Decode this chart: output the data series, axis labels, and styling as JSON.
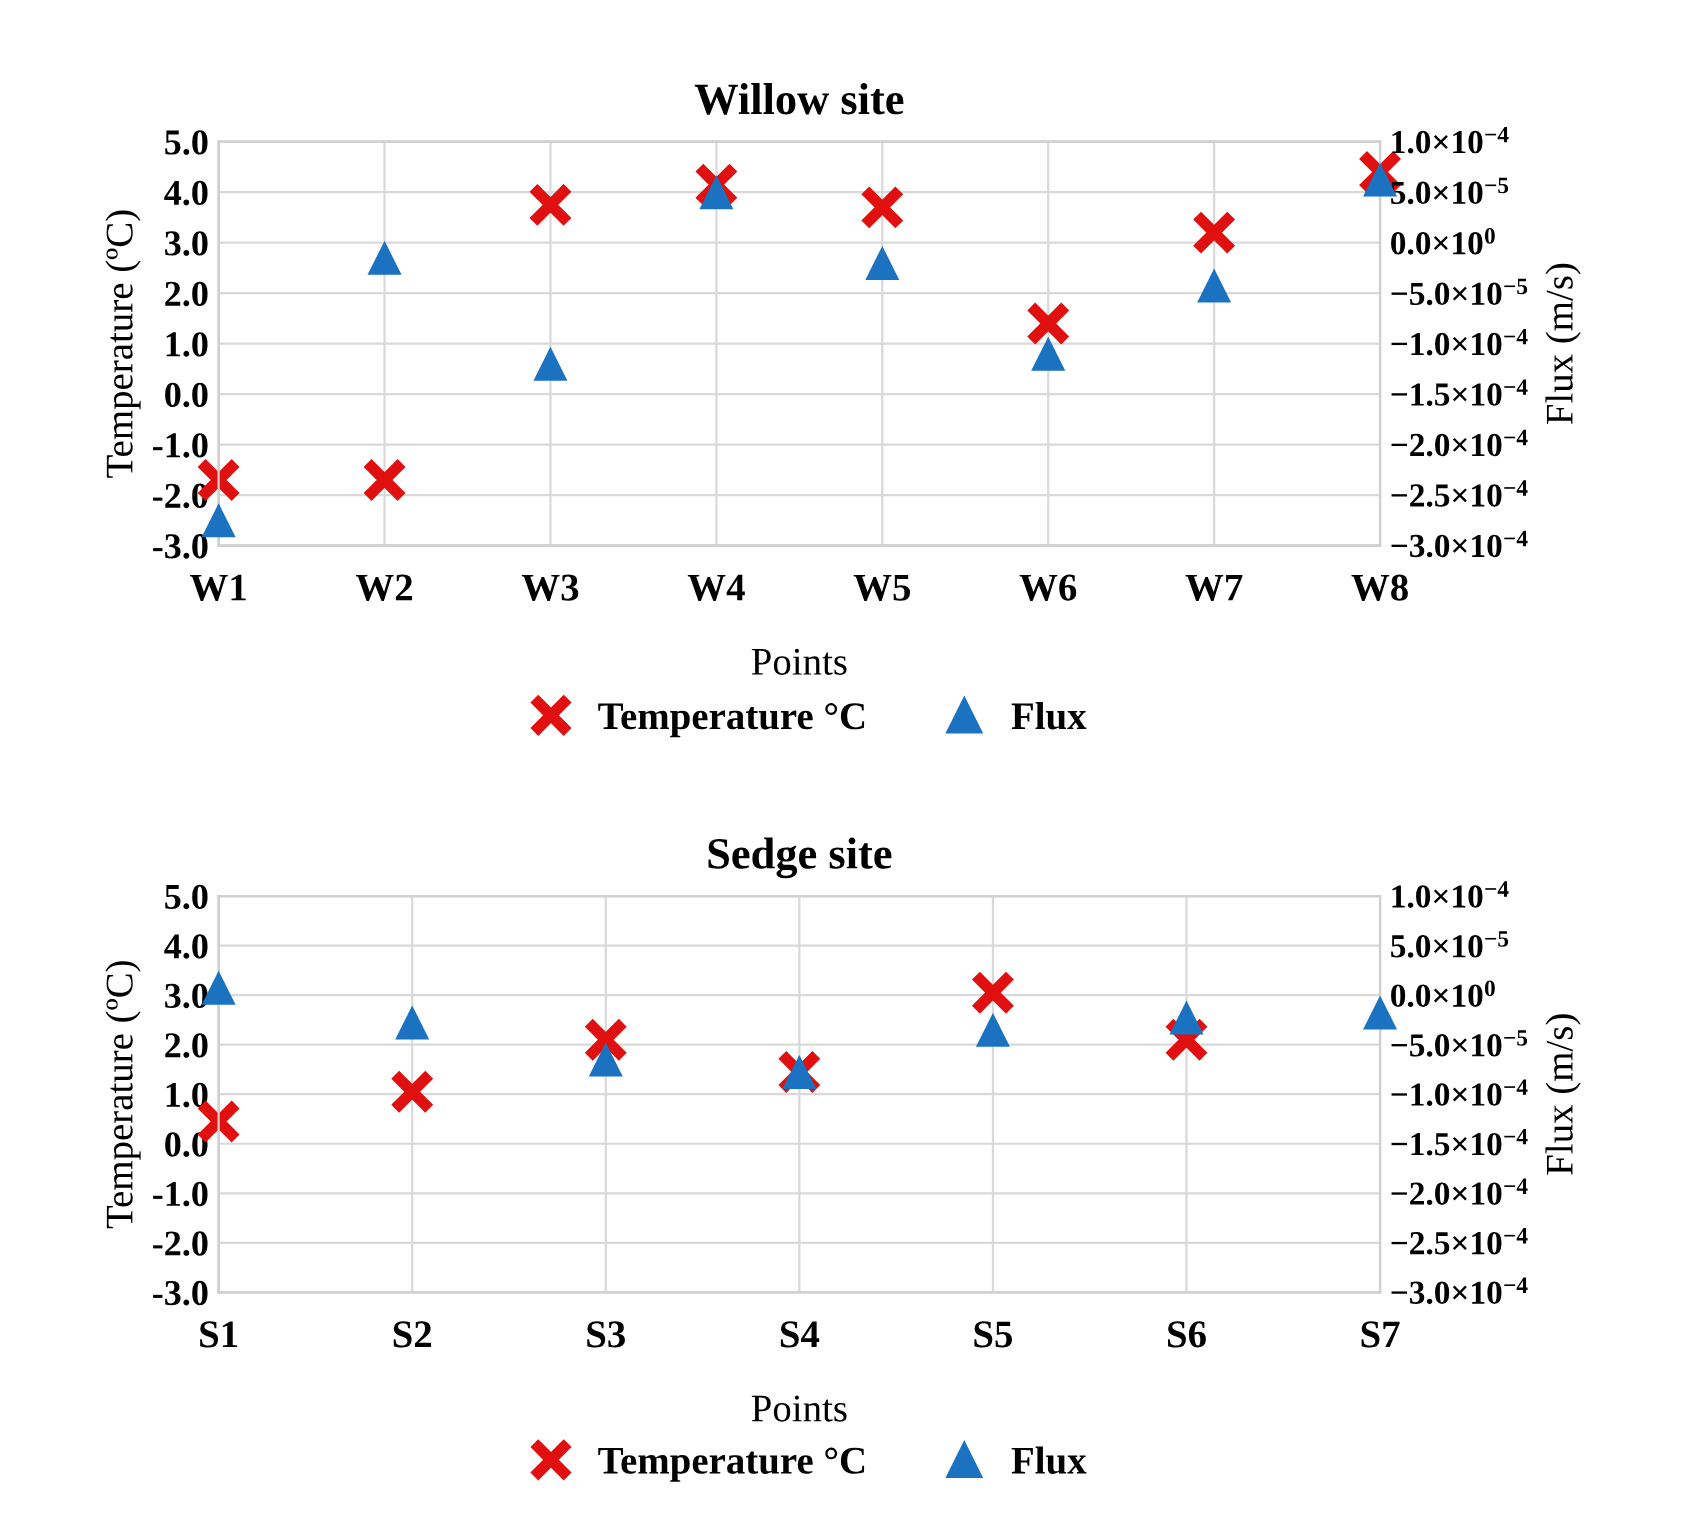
{
  "chart_data": [
    {
      "type": "scatter",
      "title": "Willow site",
      "xlabel": "Points",
      "ylabel": "Temperature (ºC)",
      "y2label": "Flux (m/s)",
      "categories": [
        "W1",
        "W2",
        "W3",
        "W4",
        "W5",
        "W6",
        "W7",
        "W8"
      ],
      "series": [
        {
          "name": "Temperature °C",
          "color": "#e01010",
          "marker": "cross",
          "values": [
            -1.7,
            -1.7,
            3.75,
            4.15,
            3.7,
            1.4,
            3.2,
            4.4
          ]
        },
        {
          "name": "Flux",
          "color": "#1a72c0",
          "marker": "triangle",
          "axis": "y2",
          "values": [
            -0.000275,
            -1.5e-05,
            -0.00012,
            5e-05,
            -2e-05,
            -0.00011,
            -4.25e-05,
            6.25e-05
          ]
        }
      ],
      "ylim": [
        -3,
        5
      ],
      "yticks": [
        {
          "value": -3,
          "label": "-3.0"
        },
        {
          "value": -2,
          "label": "-2.0"
        },
        {
          "value": -1,
          "label": "-1.0"
        },
        {
          "value": 0,
          "label": "0.0"
        },
        {
          "value": 1,
          "label": "1.0"
        },
        {
          "value": 2,
          "label": "2.0"
        },
        {
          "value": 3,
          "label": "3.0"
        },
        {
          "value": 4,
          "label": "4.0"
        },
        {
          "value": 5,
          "label": "5.0"
        }
      ],
      "y2lim": [
        -0.0003,
        0.0001
      ],
      "y2ticks": [
        {
          "value": -0.0003,
          "label": "−3.0×10$^{−4}$"
        },
        {
          "value": -0.00025,
          "label": "−2.5×10$^{−4}$"
        },
        {
          "value": -0.0002,
          "label": "−2.0×10$^{−4}$"
        },
        {
          "value": -0.00015,
          "label": "−1.5×10$^{−4}$"
        },
        {
          "value": -0.0001,
          "label": "−1.0×10$^{−4}$"
        },
        {
          "value": -5e-05,
          "label": "−5.0×10$^{−5}$"
        },
        {
          "value": 0,
          "label": "0.0×10$^{0}$"
        },
        {
          "value": 5e-05,
          "label": "5.0×10$^{−5}$"
        },
        {
          "value": 0.0001,
          "label": "1.0×10$^{−4}$"
        }
      ],
      "grid": true,
      "legend": "bottom"
    },
    {
      "type": "scatter",
      "title": "Sedge site",
      "xlabel": "Points",
      "ylabel": "Temperature (ºC)",
      "y2label": "Flux (m/s)",
      "categories": [
        "S1",
        "S2",
        "S3",
        "S4",
        "S5",
        "S6",
        "S7"
      ],
      "series": [
        {
          "name": "Temperature °C",
          "color": "#e01010",
          "marker": "cross",
          "values": [
            0.45,
            1.05,
            2.1,
            1.45,
            3.05,
            2.1,
            null
          ]
        },
        {
          "name": "Flux",
          "color": "#1a72c0",
          "marker": "triangle",
          "axis": "y2",
          "values": [
            7.5e-06,
            -2.75e-05,
            -6.5e-05,
            -7.75e-05,
            -3.5e-05,
            -2.25e-05,
            -1.75e-05
          ]
        }
      ],
      "ylim": [
        -3,
        5
      ],
      "yticks": [
        {
          "value": -3,
          "label": "-3.0"
        },
        {
          "value": -2,
          "label": "-2.0"
        },
        {
          "value": -1,
          "label": "-1.0"
        },
        {
          "value": 0,
          "label": "0.0"
        },
        {
          "value": 1,
          "label": "1.0"
        },
        {
          "value": 2,
          "label": "2.0"
        },
        {
          "value": 3,
          "label": "3.0"
        },
        {
          "value": 4,
          "label": "4.0"
        },
        {
          "value": 5,
          "label": "5.0"
        }
      ],
      "y2lim": [
        -0.0003,
        0.0001
      ],
      "y2ticks": [
        {
          "value": -0.0003,
          "label": "−3.0×10$^{−4}$"
        },
        {
          "value": -0.00025,
          "label": "−2.5×10$^{−4}$"
        },
        {
          "value": -0.0002,
          "label": "−2.0×10$^{−4}$"
        },
        {
          "value": -0.00015,
          "label": "−1.5×10$^{−4}$"
        },
        {
          "value": -0.0001,
          "label": "−1.0×10$^{−4}$"
        },
        {
          "value": -5e-05,
          "label": "−5.0×10$^{−5}$"
        },
        {
          "value": 0,
          "label": "0.0×10$^{0}$"
        },
        {
          "value": 5e-05,
          "label": "5.0×10$^{−5}$"
        },
        {
          "value": 0.0001,
          "label": "1.0×10$^{−4}$"
        }
      ],
      "grid": true,
      "legend": "bottom"
    }
  ]
}
